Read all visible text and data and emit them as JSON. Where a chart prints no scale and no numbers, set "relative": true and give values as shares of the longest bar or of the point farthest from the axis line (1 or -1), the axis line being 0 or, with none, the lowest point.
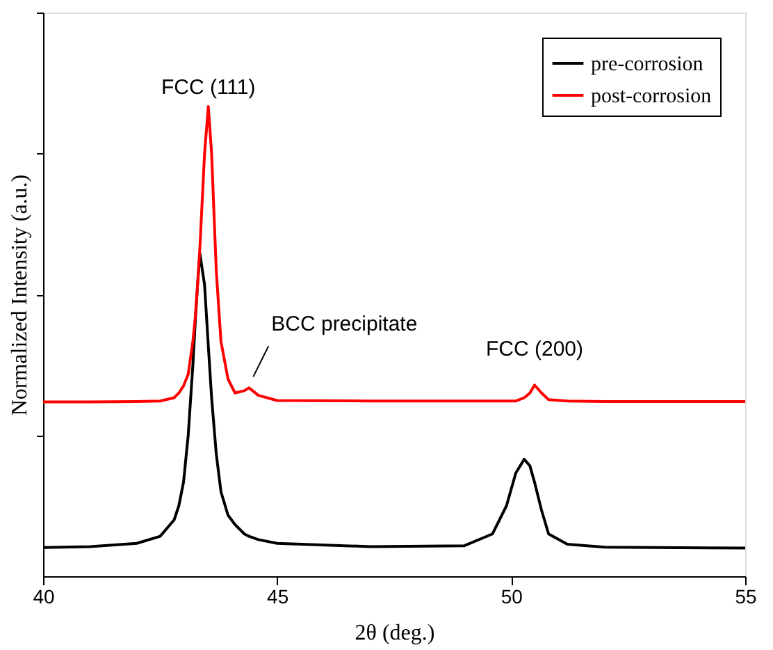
{
  "chart_data": {
    "type": "line",
    "relative": true,
    "xlabel": "2θ (deg.)",
    "ylabel": "Normalized Intensity (a.u.)",
    "xlim": [
      40,
      55
    ],
    "xticks": [
      40,
      45,
      50,
      55
    ],
    "grid": false,
    "legend": "top right",
    "line_style": "solid",
    "marker": "none",
    "x": [
      40,
      41,
      42,
      42.5,
      42.8,
      42.9,
      43.0,
      43.1,
      43.2,
      43.25,
      43.3,
      43.35,
      43.45,
      43.53,
      43.6,
      43.7,
      43.8,
      43.95,
      44.1,
      44.3,
      44.4,
      44.6,
      45,
      47,
      49,
      49.6,
      49.9,
      50.1,
      50.28,
      50.4,
      50.5,
      50.65,
      50.8,
      51.2,
      52,
      55
    ],
    "series": [
      {
        "name": "pre-corrosion",
        "color": "#000000",
        "values": [
          0.061,
          0.063,
          0.07,
          0.085,
          0.12,
          0.15,
          0.2,
          0.3,
          0.45,
          0.54,
          0.62,
          0.687,
          0.62,
          0.49,
          0.38,
          0.26,
          0.18,
          0.13,
          0.11,
          0.09,
          0.085,
          0.078,
          0.07,
          0.063,
          0.065,
          0.09,
          0.15,
          0.22,
          0.249,
          0.235,
          0.2,
          0.14,
          0.09,
          0.068,
          0.062,
          0.06
        ]
      },
      {
        "name": "post-corrosion",
        "color": "#ff0000",
        "values": [
          0.371,
          0.371,
          0.372,
          0.373,
          0.38,
          0.39,
          0.405,
          0.43,
          0.5,
          0.55,
          0.62,
          0.7,
          0.9,
          1,
          0.9,
          0.65,
          0.5,
          0.42,
          0.39,
          0.395,
          0.401,
          0.385,
          0.374,
          0.373,
          0.373,
          0.373,
          0.373,
          0.373,
          0.38,
          0.39,
          0.407,
          0.39,
          0.376,
          0.373,
          0.372,
          0.372
        ]
      }
    ],
    "annotations": [
      {
        "text": "FCC (111)",
        "x": 43.53,
        "y": 1
      },
      {
        "text": "BCC precipitate",
        "x": 44.4,
        "y": 0.401
      },
      {
        "text": "FCC (200)",
        "x": 50.5,
        "y": 0.407
      }
    ]
  }
}
